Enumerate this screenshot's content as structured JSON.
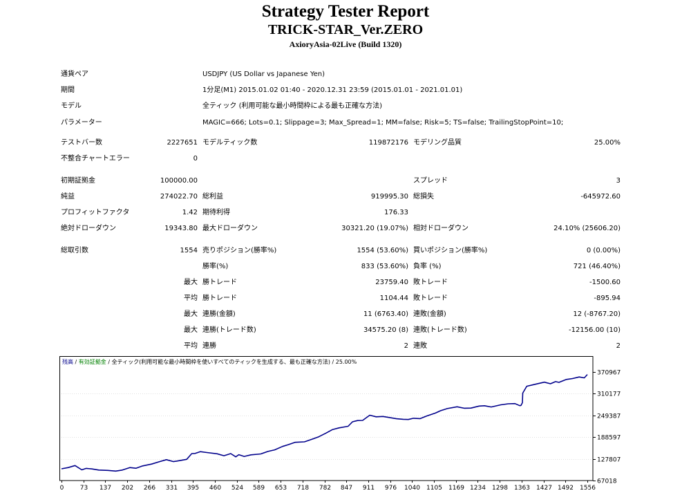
{
  "header": {
    "title": "Strategy Tester Report",
    "subtitle": "TRICK-STAR_Ver.ZERO",
    "server": "AxioryAsia-02Live (Build 1320)"
  },
  "settings": {
    "symbol_label": "通貨ペア",
    "symbol_value": "USDJPY (US Dollar vs Japanese Yen)",
    "period_label": "期間",
    "period_value": "1分足(M1) 2015.01.02 01:40 - 2020.12.31 23:59 (2015.01.01 - 2021.01.01)",
    "model_label": "モデル",
    "model_value": "全ティック (利用可能な最小時間枠による最も正確な方法)",
    "params_label": "パラメーター",
    "params_value": "MAGIC=666; Lots=0.1; Slippage=3; Max_Spread=1; MM=false; Risk=5; TS=false; TrailingStopPoint=10;"
  },
  "stats": {
    "bars_label": "テストバー数",
    "bars_value": "2227651",
    "ticks_label": "モデルティック数",
    "ticks_value": "119872176",
    "quality_label": "モデリング品質",
    "quality_value": "25.00%",
    "mismatch_label": "不整合チャートエラー",
    "mismatch_value": "0",
    "deposit_label": "初期証拠金",
    "deposit_value": "100000.00",
    "spread_label": "スプレッド",
    "spread_value": "3",
    "net_profit_label": "純益",
    "net_profit_value": "274022.70",
    "gross_profit_label": "総利益",
    "gross_profit_value": "919995.30",
    "gross_loss_label": "総損失",
    "gross_loss_value": "-645972.60",
    "profit_factor_label": "プロフィットファクタ",
    "profit_factor_value": "1.42",
    "expected_payoff_label": "期待利得",
    "expected_payoff_value": "176.33",
    "abs_dd_label": "絶対ドローダウン",
    "abs_dd_value": "19343.80",
    "max_dd_label": "最大ドローダウン",
    "max_dd_value": "30321.20 (19.07%)",
    "rel_dd_label": "相対ドローダウン",
    "rel_dd_value": "24.10% (25606.20)",
    "total_trades_label": "総取引数",
    "total_trades_value": "1554",
    "short_label": "売りポジション(勝率%)",
    "short_value": "1554 (53.60%)",
    "long_label": "買いポジション(勝率%)",
    "long_value": "0 (0.00%)",
    "win_rate_label": "勝率(%)",
    "win_rate_value": "833 (53.60%)",
    "loss_rate_label": "負率 (%)",
    "loss_rate_value": "721 (46.40%)",
    "max_word": "最大",
    "avg_word": "平均",
    "largest_win_label": "勝トレード",
    "largest_win_value": "23759.40",
    "largest_loss_label": "敗トレード",
    "largest_loss_value": "-1500.60",
    "avg_win_label": "勝トレード",
    "avg_win_value": "1104.44",
    "avg_loss_label": "敗トレード",
    "avg_loss_value": "-895.94",
    "max_consec_wins_label": "連勝(金額)",
    "max_consec_wins_value": "11 (6763.40)",
    "max_consec_losses_label": "連敗(金額)",
    "max_consec_losses_value": "12 (-8767.20)",
    "max_consec_profit_label": "連勝(トレード数)",
    "max_consec_profit_value": "34575.20 (8)",
    "max_consec_loss_label": "連敗(トレード数)",
    "max_consec_loss_value": "-12156.00 (10)",
    "avg_consec_wins_label": "連勝",
    "avg_consec_wins_value": "2",
    "avg_consec_losses_label": "連敗",
    "avg_consec_losses_value": "2"
  },
  "chart_data": {
    "type": "line",
    "legend": {
      "balance": "残高",
      "separator": " / ",
      "equity": "有効証拠金",
      "rest": " / 全ティック(利用可能な最小時間枠を使いすべてのティックを生成する、最も正確な方法) / 25.00%"
    },
    "colors": {
      "line": "#00008b",
      "balance_text": "#00008b",
      "equity_text": "#008000",
      "grid": "#c0c0c0"
    },
    "x_ticks": [
      "0",
      "73",
      "137",
      "202",
      "266",
      "331",
      "395",
      "460",
      "524",
      "589",
      "653",
      "718",
      "782",
      "847",
      "911",
      "976",
      "1040",
      "1105",
      "1169",
      "1234",
      "1298",
      "1363",
      "1427",
      "1492",
      "1556"
    ],
    "y_ticks": [
      "370967",
      "310177",
      "249387",
      "188597",
      "127807",
      "67018"
    ],
    "xlim": [
      0,
      1554
    ],
    "ylim": [
      67018,
      370967
    ],
    "series": [
      {
        "x": [
          0,
          20,
          40,
          60,
          73,
          90,
          110,
          137,
          160,
          180,
          202,
          220,
          240,
          266,
          290,
          310,
          331,
          350,
          370,
          385,
          395,
          410,
          430,
          460,
          480,
          500,
          515,
          524,
          540,
          560,
          589,
          610,
          630,
          653,
          670,
          690,
          718,
          740,
          760,
          782,
          800,
          820,
          847,
          860,
          875,
          890,
          911,
          930,
          950,
          976,
          990,
          1010,
          1025,
          1040,
          1060,
          1080,
          1105,
          1120,
          1140,
          1169,
          1190,
          1210,
          1234,
          1250,
          1270,
          1298,
          1320,
          1340,
          1355,
          1358,
          1362,
          1363,
          1375,
          1395,
          1427,
          1445,
          1460,
          1470,
          1492,
          1510,
          1530,
          1545,
          1554
        ],
        "y": [
          100000,
          103500,
          109000,
          97000,
          101000,
          99500,
          96500,
          95500,
          93500,
          96500,
          103500,
          101500,
          108000,
          113000,
          120000,
          125500,
          120000,
          123000,
          126500,
          142500,
          143000,
          148000,
          145500,
          142000,
          136500,
          142500,
          133500,
          139500,
          134500,
          139000,
          141500,
          148500,
          153000,
          162500,
          167500,
          174000,
          175500,
          182500,
          189500,
          200000,
          209500,
          214500,
          219000,
          231500,
          235000,
          235500,
          250000,
          245500,
          246500,
          242500,
          240000,
          238500,
          238000,
          241500,
          240500,
          248000,
          256000,
          262500,
          268500,
          273500,
          269500,
          270000,
          275500,
          276500,
          273000,
          279000,
          282000,
          282500,
          276500,
          277500,
          285000,
          312000,
          331000,
          335500,
          342500,
          338000,
          344000,
          342000,
          350000,
          352500,
          357000,
          354500,
          364000
        ]
      }
    ]
  }
}
